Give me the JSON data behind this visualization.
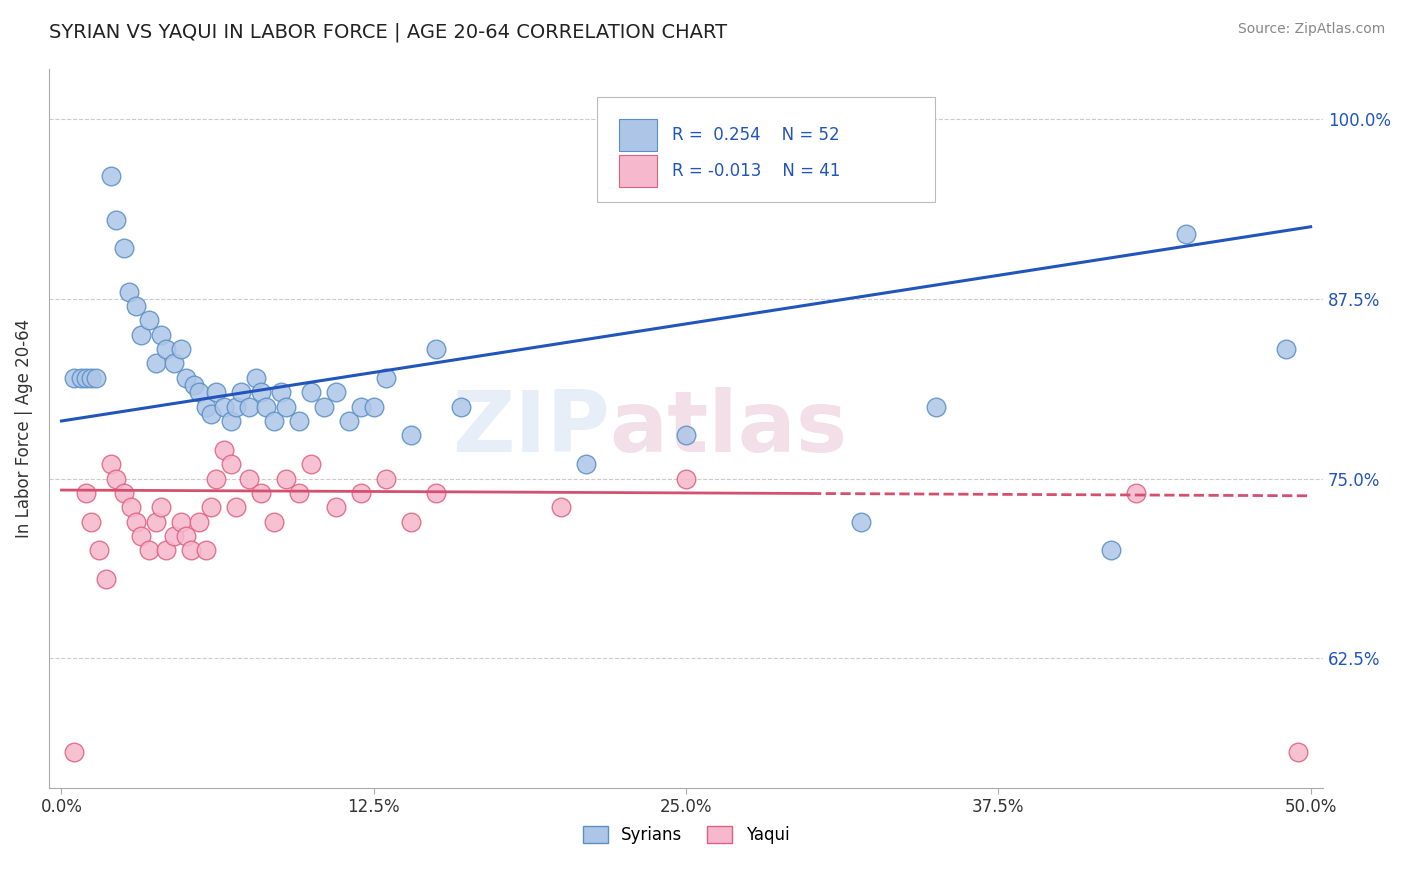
{
  "title": "SYRIAN VS YAQUI IN LABOR FORCE | AGE 20-64 CORRELATION CHART",
  "source_text": "Source: ZipAtlas.com",
  "ylabel": "In Labor Force | Age 20-64",
  "xlim": [
    -0.005,
    0.505
  ],
  "ylim": [
    0.535,
    1.035
  ],
  "xtick_labels": [
    "0.0%",
    "12.5%",
    "25.0%",
    "37.5%",
    "50.0%"
  ],
  "xtick_values": [
    0.0,
    0.125,
    0.25,
    0.375,
    0.5
  ],
  "ytick_labels": [
    "62.5%",
    "75.0%",
    "87.5%",
    "100.0%"
  ],
  "ytick_values": [
    0.625,
    0.75,
    0.875,
    1.0
  ],
  "syrian_color": "#adc6e8",
  "syrian_edge": "#5a8fc4",
  "yaqui_color": "#f5b8cc",
  "yaqui_edge": "#e06080",
  "trend_blue": "#2255bb",
  "trend_pink": "#d45070",
  "watermark_color": "#d0dff0",
  "watermark_color2": "#e8c0d0",
  "background_color": "#ffffff",
  "grid_color": "#cccccc",
  "legend_text_color": "#2255bb",
  "syrian_x": [
    0.005,
    0.008,
    0.01,
    0.012,
    0.014,
    0.02,
    0.022,
    0.025,
    0.027,
    0.03,
    0.032,
    0.035,
    0.038,
    0.04,
    0.042,
    0.045,
    0.048,
    0.05,
    0.053,
    0.055,
    0.058,
    0.06,
    0.062,
    0.065,
    0.068,
    0.07,
    0.072,
    0.075,
    0.078,
    0.08,
    0.082,
    0.085,
    0.088,
    0.09,
    0.095,
    0.1,
    0.105,
    0.11,
    0.115,
    0.12,
    0.125,
    0.13,
    0.14,
    0.15,
    0.16,
    0.21,
    0.25,
    0.32,
    0.35,
    0.42,
    0.45,
    0.49
  ],
  "syrian_y": [
    0.82,
    0.82,
    0.82,
    0.82,
    0.82,
    0.96,
    0.93,
    0.91,
    0.88,
    0.87,
    0.85,
    0.86,
    0.83,
    0.85,
    0.84,
    0.83,
    0.84,
    0.82,
    0.815,
    0.81,
    0.8,
    0.795,
    0.81,
    0.8,
    0.79,
    0.8,
    0.81,
    0.8,
    0.82,
    0.81,
    0.8,
    0.79,
    0.81,
    0.8,
    0.79,
    0.81,
    0.8,
    0.81,
    0.79,
    0.8,
    0.8,
    0.82,
    0.78,
    0.84,
    0.8,
    0.76,
    0.78,
    0.72,
    0.8,
    0.7,
    0.92,
    0.84
  ],
  "yaqui_x": [
    0.005,
    0.01,
    0.012,
    0.015,
    0.018,
    0.02,
    0.022,
    0.025,
    0.028,
    0.03,
    0.032,
    0.035,
    0.038,
    0.04,
    0.042,
    0.045,
    0.048,
    0.05,
    0.052,
    0.055,
    0.058,
    0.06,
    0.062,
    0.065,
    0.068,
    0.07,
    0.075,
    0.08,
    0.085,
    0.09,
    0.095,
    0.1,
    0.11,
    0.12,
    0.13,
    0.14,
    0.15,
    0.2,
    0.25,
    0.43,
    0.495
  ],
  "yaqui_y": [
    0.56,
    0.74,
    0.72,
    0.7,
    0.68,
    0.76,
    0.75,
    0.74,
    0.73,
    0.72,
    0.71,
    0.7,
    0.72,
    0.73,
    0.7,
    0.71,
    0.72,
    0.71,
    0.7,
    0.72,
    0.7,
    0.73,
    0.75,
    0.77,
    0.76,
    0.73,
    0.75,
    0.74,
    0.72,
    0.75,
    0.74,
    0.76,
    0.73,
    0.74,
    0.75,
    0.72,
    0.74,
    0.73,
    0.75,
    0.74,
    0.56
  ]
}
